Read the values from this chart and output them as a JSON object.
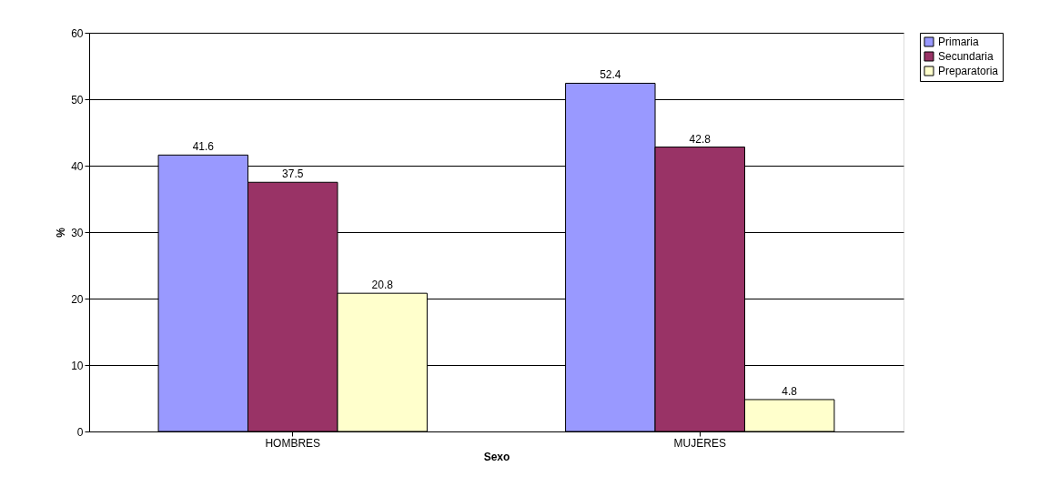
{
  "chart_data": {
    "type": "bar",
    "xlabel": "Sexo",
    "ylabel": "%",
    "categories": [
      "HOMBRES",
      "MUJERES"
    ],
    "series": [
      {
        "name": "Primaria",
        "color": "#9999ff",
        "values": [
          41.6,
          52.4
        ]
      },
      {
        "name": "Secundaria",
        "color": "#993366",
        "values": [
          37.5,
          42.8
        ]
      },
      {
        "name": "Preparatoria",
        "color": "#ffffcc",
        "values": [
          20.8,
          4.8
        ]
      }
    ],
    "ylim": [
      0,
      60
    ],
    "yticks": [
      0,
      10,
      20,
      30,
      40,
      50,
      60
    ],
    "grid": "y",
    "legend": "right",
    "data_labels": true
  }
}
